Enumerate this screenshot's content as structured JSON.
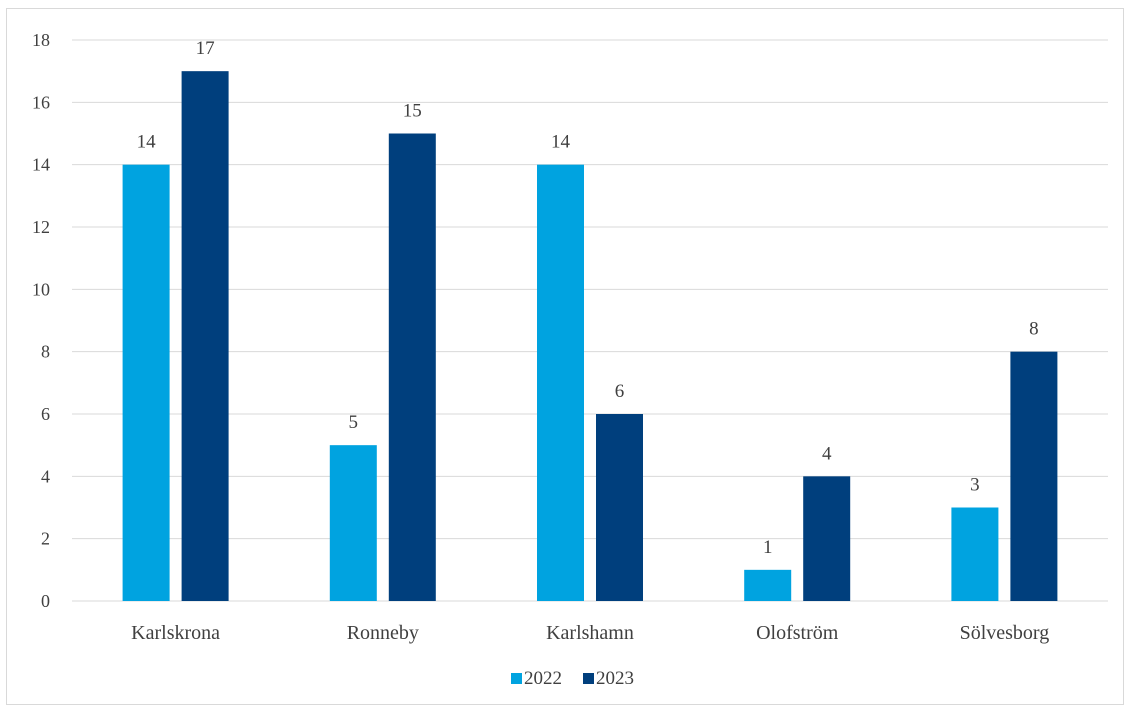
{
  "chart_data": {
    "type": "bar",
    "title": "",
    "xlabel": "",
    "ylabel": "",
    "categories": [
      "Karlskrona",
      "Ronneby",
      "Karlshamn",
      "Olofström",
      "Sölvesborg"
    ],
    "series": [
      {
        "name": "2022",
        "values": [
          14,
          5,
          14,
          1,
          3
        ],
        "color": "#00a3e0"
      },
      {
        "name": "2023",
        "values": [
          17,
          15,
          6,
          4,
          8
        ],
        "color": "#003f7d"
      }
    ],
    "ylim": [
      0,
      18
    ],
    "yticks": [
      0,
      2,
      4,
      6,
      8,
      10,
      12,
      14,
      16,
      18
    ],
    "grid": true,
    "legend_position": "bottom",
    "data_labels": true
  }
}
